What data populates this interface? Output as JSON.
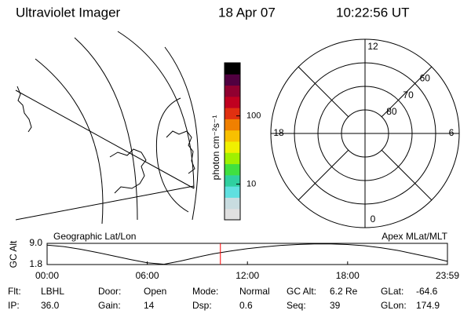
{
  "header": {
    "instrument": "Ultraviolet Imager",
    "date": "18 Apr 07",
    "time": "10:22:56 UT"
  },
  "map_label": "Geographic Lat/Lon",
  "colorbar": {
    "label": "photon cm⁻²s⁻¹",
    "scale": "log",
    "ylim": [
      3,
      600
    ],
    "yticks": [
      10,
      100
    ],
    "colors": [
      "#e0e0e0",
      "#c8dce0",
      "#60e0e0",
      "#30d0a0",
      "#40e040",
      "#a0f000",
      "#f0f000",
      "#f8c000",
      "#f08000",
      "#e03010",
      "#c00020",
      "#900030",
      "#500040",
      "#000000"
    ]
  },
  "polar": {
    "label": "Apex MLat/MLT",
    "rlim": [
      90,
      50
    ],
    "rings": [
      60,
      70,
      80
    ],
    "mlt_labels": [
      {
        "value": 12,
        "label": "12"
      },
      {
        "value": 18,
        "label": "18"
      },
      {
        "value": 6,
        "label": "6"
      },
      {
        "value": 0,
        "label": "0"
      }
    ]
  },
  "altitude_plot": {
    "type": "line",
    "ylabel": "GC Alt",
    "color": "#000000",
    "marker_color": "#ff0000",
    "marker_x": 10.38,
    "xlim": [
      0,
      23.98
    ],
    "ylim": [
      1.8,
      9.0
    ],
    "yticks": [
      {
        "value": 9,
        "label": "9.0"
      },
      1.8
    ],
    "xticks": [
      {
        "value": 0,
        "label": "00:00"
      },
      {
        "value": 6,
        "label": "06:00"
      },
      {
        "value": 12,
        "label": "12:00"
      },
      {
        "value": 18,
        "label": "18:00"
      },
      {
        "value": 23.98,
        "label": "23:59"
      }
    ],
    "x": [
      0,
      1,
      2,
      3,
      4,
      5,
      6,
      7,
      8,
      9,
      10,
      11,
      12,
      13,
      14,
      15,
      16,
      17,
      18,
      19,
      20,
      21,
      22,
      23,
      23.98
    ],
    "values": [
      8.4,
      7.9,
      7.0,
      5.9,
      4.7,
      3.5,
      2.4,
      1.9,
      3.0,
      4.3,
      5.5,
      6.4,
      7.2,
      7.8,
      8.3,
      8.6,
      8.8,
      8.8,
      8.6,
      8.2,
      7.5,
      6.6,
      5.4,
      4.2,
      2.9
    ]
  },
  "info": [
    {
      "label": "Flt:",
      "value": "LBHL"
    },
    {
      "label": "Door:",
      "value": "Open"
    },
    {
      "label": "Mode:",
      "value": "Normal"
    },
    {
      "label": "GC Alt:",
      "value": "6.2 Re"
    },
    {
      "label": "GLat:",
      "value": "-64.6"
    },
    {
      "label": "IP:",
      "value": "36.0"
    },
    {
      "label": "Gain:",
      "value": "14"
    },
    {
      "label": "Dsp:",
      "value": "0.6"
    },
    {
      "label": "Seq:",
      "value": "39"
    },
    {
      "label": "GLon:",
      "value": "174.9"
    }
  ]
}
